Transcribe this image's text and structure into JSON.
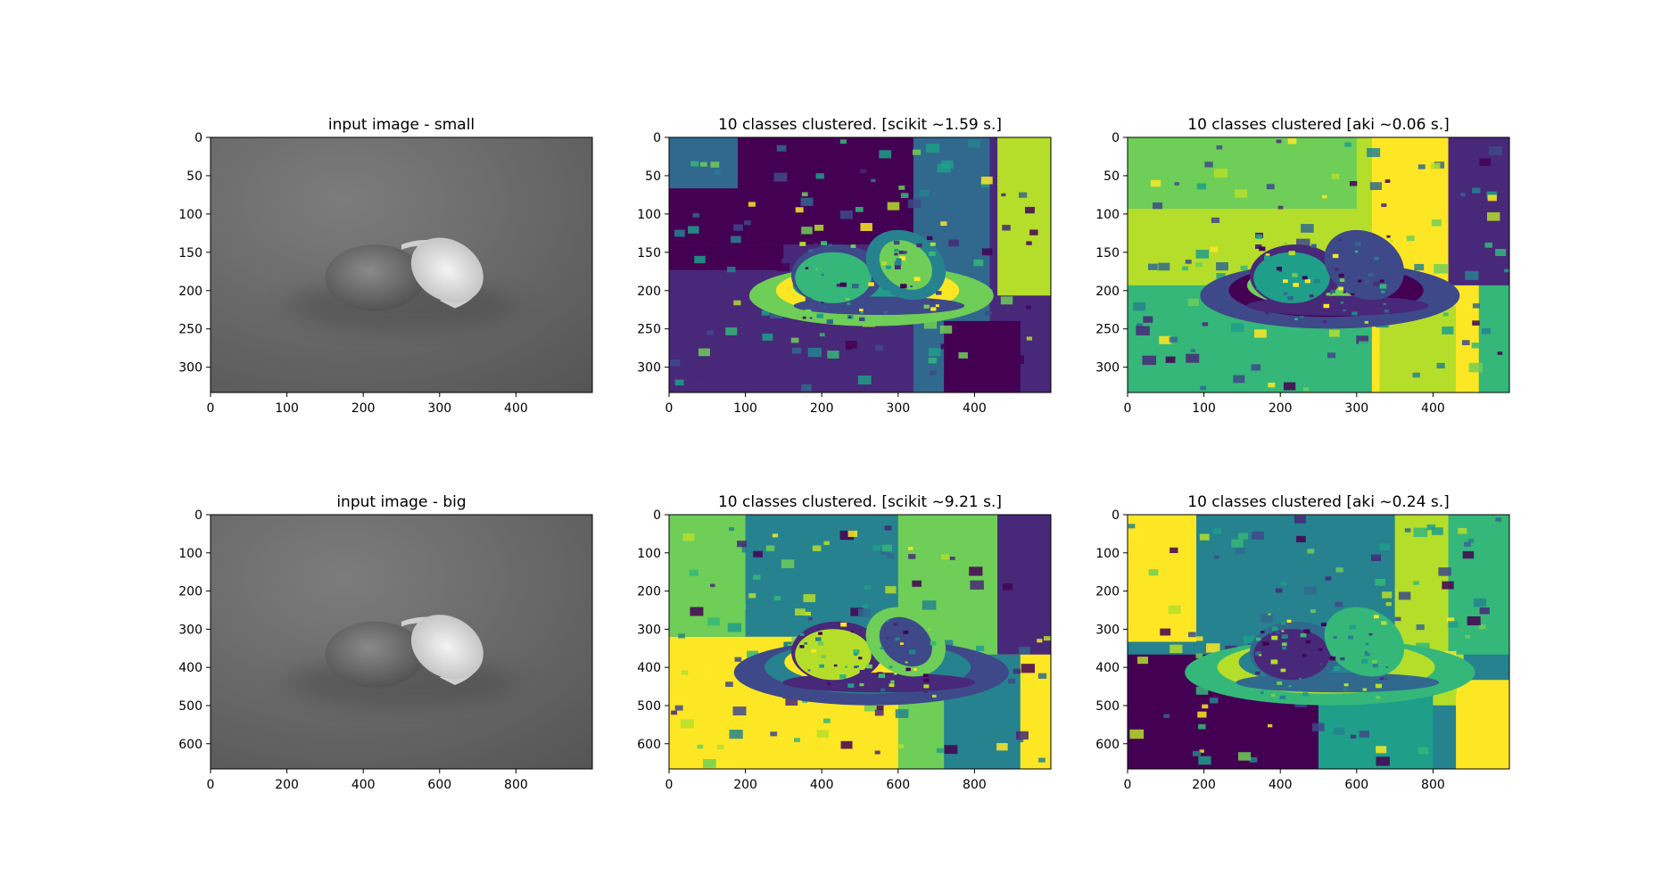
{
  "figure": {
    "background": "#ffffff",
    "viridis": [
      "#440154",
      "#482878",
      "#3e4989",
      "#31688e",
      "#26828e",
      "#1f9e89",
      "#35b779",
      "#6ece58",
      "#b5de2b",
      "#fde725"
    ]
  },
  "chart_data": [
    {
      "type": "heatmap",
      "title": "input image - small",
      "image": "grayscale orange photo",
      "xlim": [
        0,
        500
      ],
      "ylim": [
        333,
        0
      ],
      "xticks": [
        "0",
        "100",
        "200",
        "300",
        "400"
      ],
      "yticks": [
        "0",
        "50",
        "100",
        "150",
        "200",
        "250",
        "300"
      ],
      "grid": false
    },
    {
      "type": "heatmap",
      "title": "10 classes clustered. [scikit ~1.59 s.]",
      "image": "cluster label map (viridis colormap)",
      "xlim": [
        0,
        500
      ],
      "ylim": [
        333,
        0
      ],
      "xticks": [
        "0",
        "100",
        "200",
        "300",
        "400"
      ],
      "yticks": [
        "0",
        "50",
        "100",
        "150",
        "200",
        "250",
        "300"
      ],
      "grid": false
    },
    {
      "type": "heatmap",
      "title": "10 classes clustered [aki ~0.06 s.]",
      "image": "cluster label map (viridis colormap)",
      "xlim": [
        0,
        500
      ],
      "ylim": [
        333,
        0
      ],
      "xticks": [
        "0",
        "100",
        "200",
        "300",
        "400"
      ],
      "yticks": [
        "0",
        "50",
        "100",
        "150",
        "200",
        "250",
        "300"
      ],
      "grid": false
    },
    {
      "type": "heatmap",
      "title": "input image - big",
      "image": "grayscale orange photo",
      "xlim": [
        0,
        1000
      ],
      "ylim": [
        666,
        0
      ],
      "xticks": [
        "0",
        "200",
        "400",
        "600",
        "800"
      ],
      "yticks": [
        "0",
        "100",
        "200",
        "300",
        "400",
        "500",
        "600"
      ],
      "grid": false
    },
    {
      "type": "heatmap",
      "title": "10 classes clustered. [scikit ~9.21 s.]",
      "image": "cluster label map (viridis colormap)",
      "xlim": [
        0,
        1000
      ],
      "ylim": [
        666,
        0
      ],
      "xticks": [
        "0",
        "200",
        "400",
        "600",
        "800"
      ],
      "yticks": [
        "0",
        "100",
        "200",
        "300",
        "400",
        "500",
        "600"
      ],
      "grid": false
    },
    {
      "type": "heatmap",
      "title": "10 classes clustered [aki ~0.24 s.]",
      "image": "cluster label map (viridis colormap)",
      "xlim": [
        0,
        1000
      ],
      "ylim": [
        666,
        0
      ],
      "xticks": [
        "0",
        "200",
        "400",
        "600",
        "800"
      ],
      "yticks": [
        "0",
        "100",
        "200",
        "300",
        "400",
        "500",
        "600"
      ],
      "grid": false
    }
  ]
}
